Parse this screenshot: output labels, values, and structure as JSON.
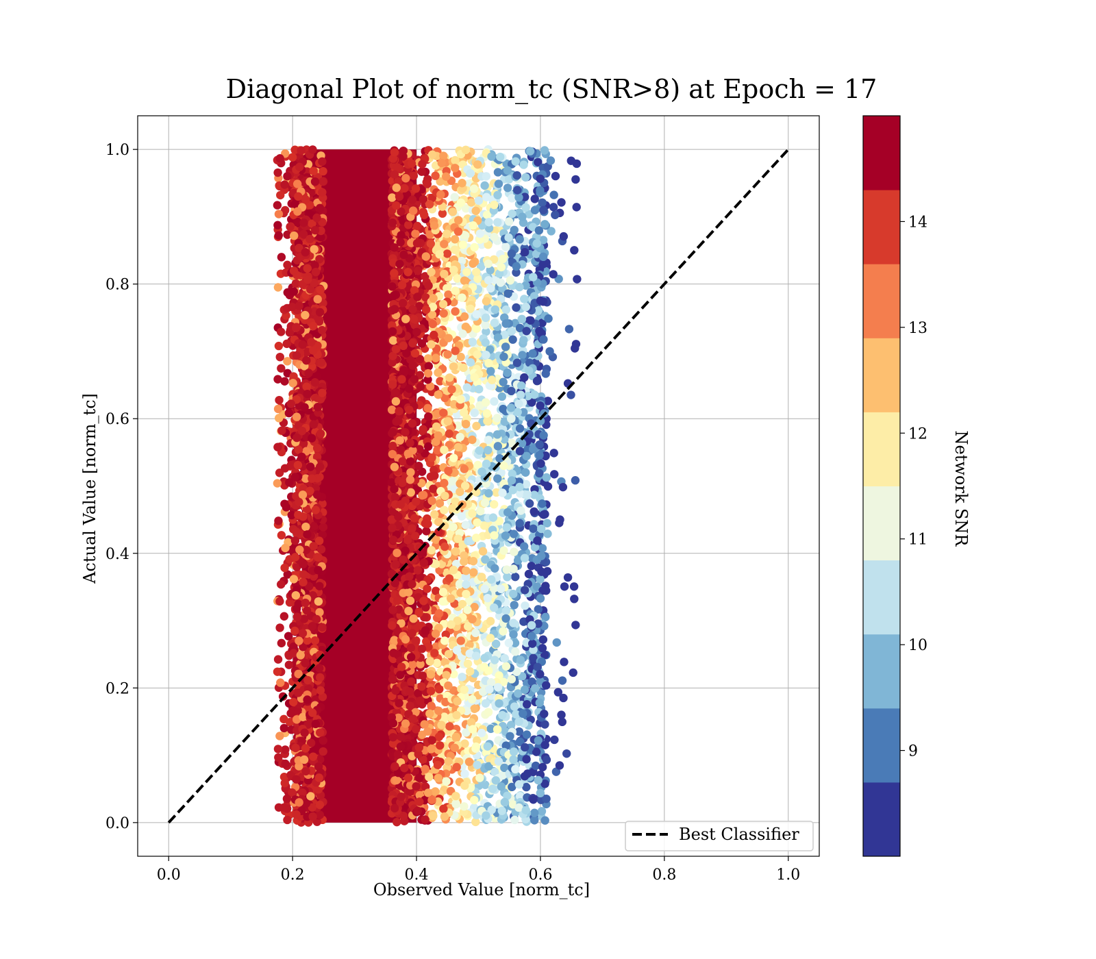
{
  "chart_data": {
    "type": "scatter",
    "title": "Diagonal Plot of norm_tc (SNR>8) at Epoch = 17",
    "xlabel": "Observed Value [norm_tc]",
    "ylabel": "Actual Value [norm_tc]",
    "xlim": [
      -0.05,
      1.05
    ],
    "ylim": [
      -0.05,
      1.05
    ],
    "x_ticks": [
      "0.0",
      "0.2",
      "0.4",
      "0.6",
      "0.8",
      "1.0"
    ],
    "y_ticks": [
      "0.0",
      "0.2",
      "0.4",
      "0.6",
      "0.8",
      "1.0"
    ],
    "grid": true,
    "reference_line": {
      "name": "Best Classifier",
      "x": [
        0.0,
        1.0
      ],
      "y": [
        0.0,
        1.0
      ],
      "style": "dashed",
      "color": "#000000"
    },
    "legend": {
      "position": "lower-right",
      "entries": [
        "Best Classifier"
      ]
    },
    "scatter_summary": {
      "x_range": [
        0.16,
        0.66
      ],
      "y_range": [
        0.0,
        1.0
      ],
      "dense_core_x": [
        0.2,
        0.4
      ],
      "color_by": "Network SNR"
    },
    "colorbar": {
      "label": "Network SNR",
      "min": 8.0,
      "max": 15.0,
      "ticks": [
        "9",
        "10",
        "11",
        "12",
        "13",
        "14"
      ],
      "colors": [
        "#313695",
        "#4575b4",
        "#74add1",
        "#abd9e9",
        "#e0f3f8",
        "#ffffbf",
        "#fee090",
        "#fdae61",
        "#f46d43",
        "#d73027",
        "#a50026"
      ],
      "bands": [
        "#313695",
        "#4a7bb7",
        "#80b6d6",
        "#c0e1ed",
        "#eef6e0",
        "#fdeda7",
        "#fdbf70",
        "#f47e4e",
        "#d73a2c",
        "#a50026"
      ]
    }
  }
}
